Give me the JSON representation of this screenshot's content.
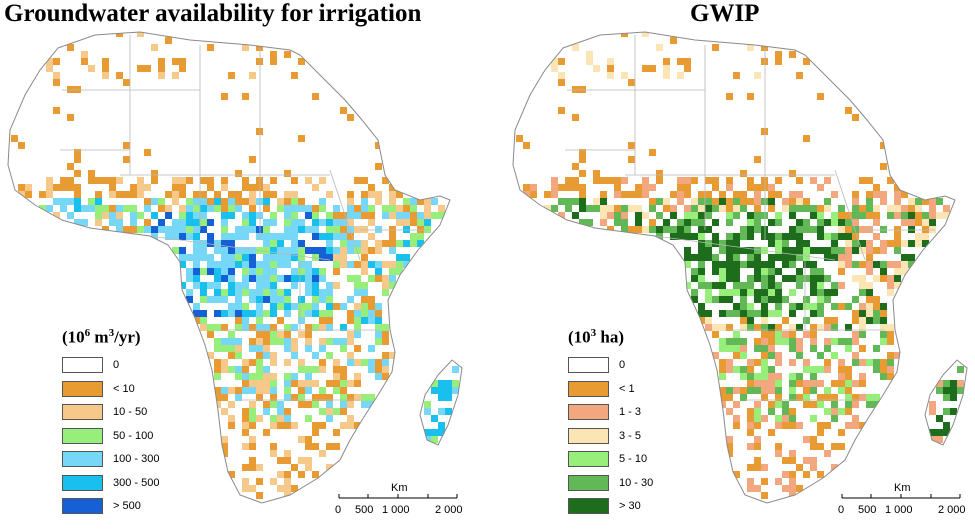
{
  "titles": {
    "left": "Groundwater availability for irrigation",
    "right": "GWIP"
  },
  "legends": {
    "left": {
      "title_base": "(10",
      "title_sup": "6",
      "title_mid": " m",
      "title_sup2": "3",
      "title_end": "/yr)",
      "items": [
        {
          "label": "0",
          "color": "#ffffff"
        },
        {
          "label": "< 10",
          "color": "#e89a33"
        },
        {
          "label": "10 - 50",
          "color": "#f6c98a"
        },
        {
          "label": "50 - 100",
          "color": "#98ee7a"
        },
        {
          "label": "100 - 300",
          "color": "#76d8f6"
        },
        {
          "label": "300 - 500",
          "color": "#19c0ee"
        },
        {
          "label": "> 500",
          "color": "#1460d4"
        }
      ]
    },
    "right": {
      "title_base": "(10",
      "title_sup": "3",
      "title_end": " ha)",
      "items": [
        {
          "label": "0",
          "color": "#ffffff"
        },
        {
          "label": "< 1",
          "color": "#e89a33"
        },
        {
          "label": "1 - 3",
          "color": "#f2a77e"
        },
        {
          "label": "3 - 5",
          "color": "#fbe5b5"
        },
        {
          "label": "5 - 10",
          "color": "#98ee7a"
        },
        {
          "label": "10 - 30",
          "color": "#62b857"
        },
        {
          "label": "> 30",
          "color": "#1d6d1d"
        }
      ]
    }
  },
  "scalebar": {
    "unit": "Km",
    "ticks": [
      "0",
      "500",
      "1 000",
      "2 000"
    ]
  }
}
